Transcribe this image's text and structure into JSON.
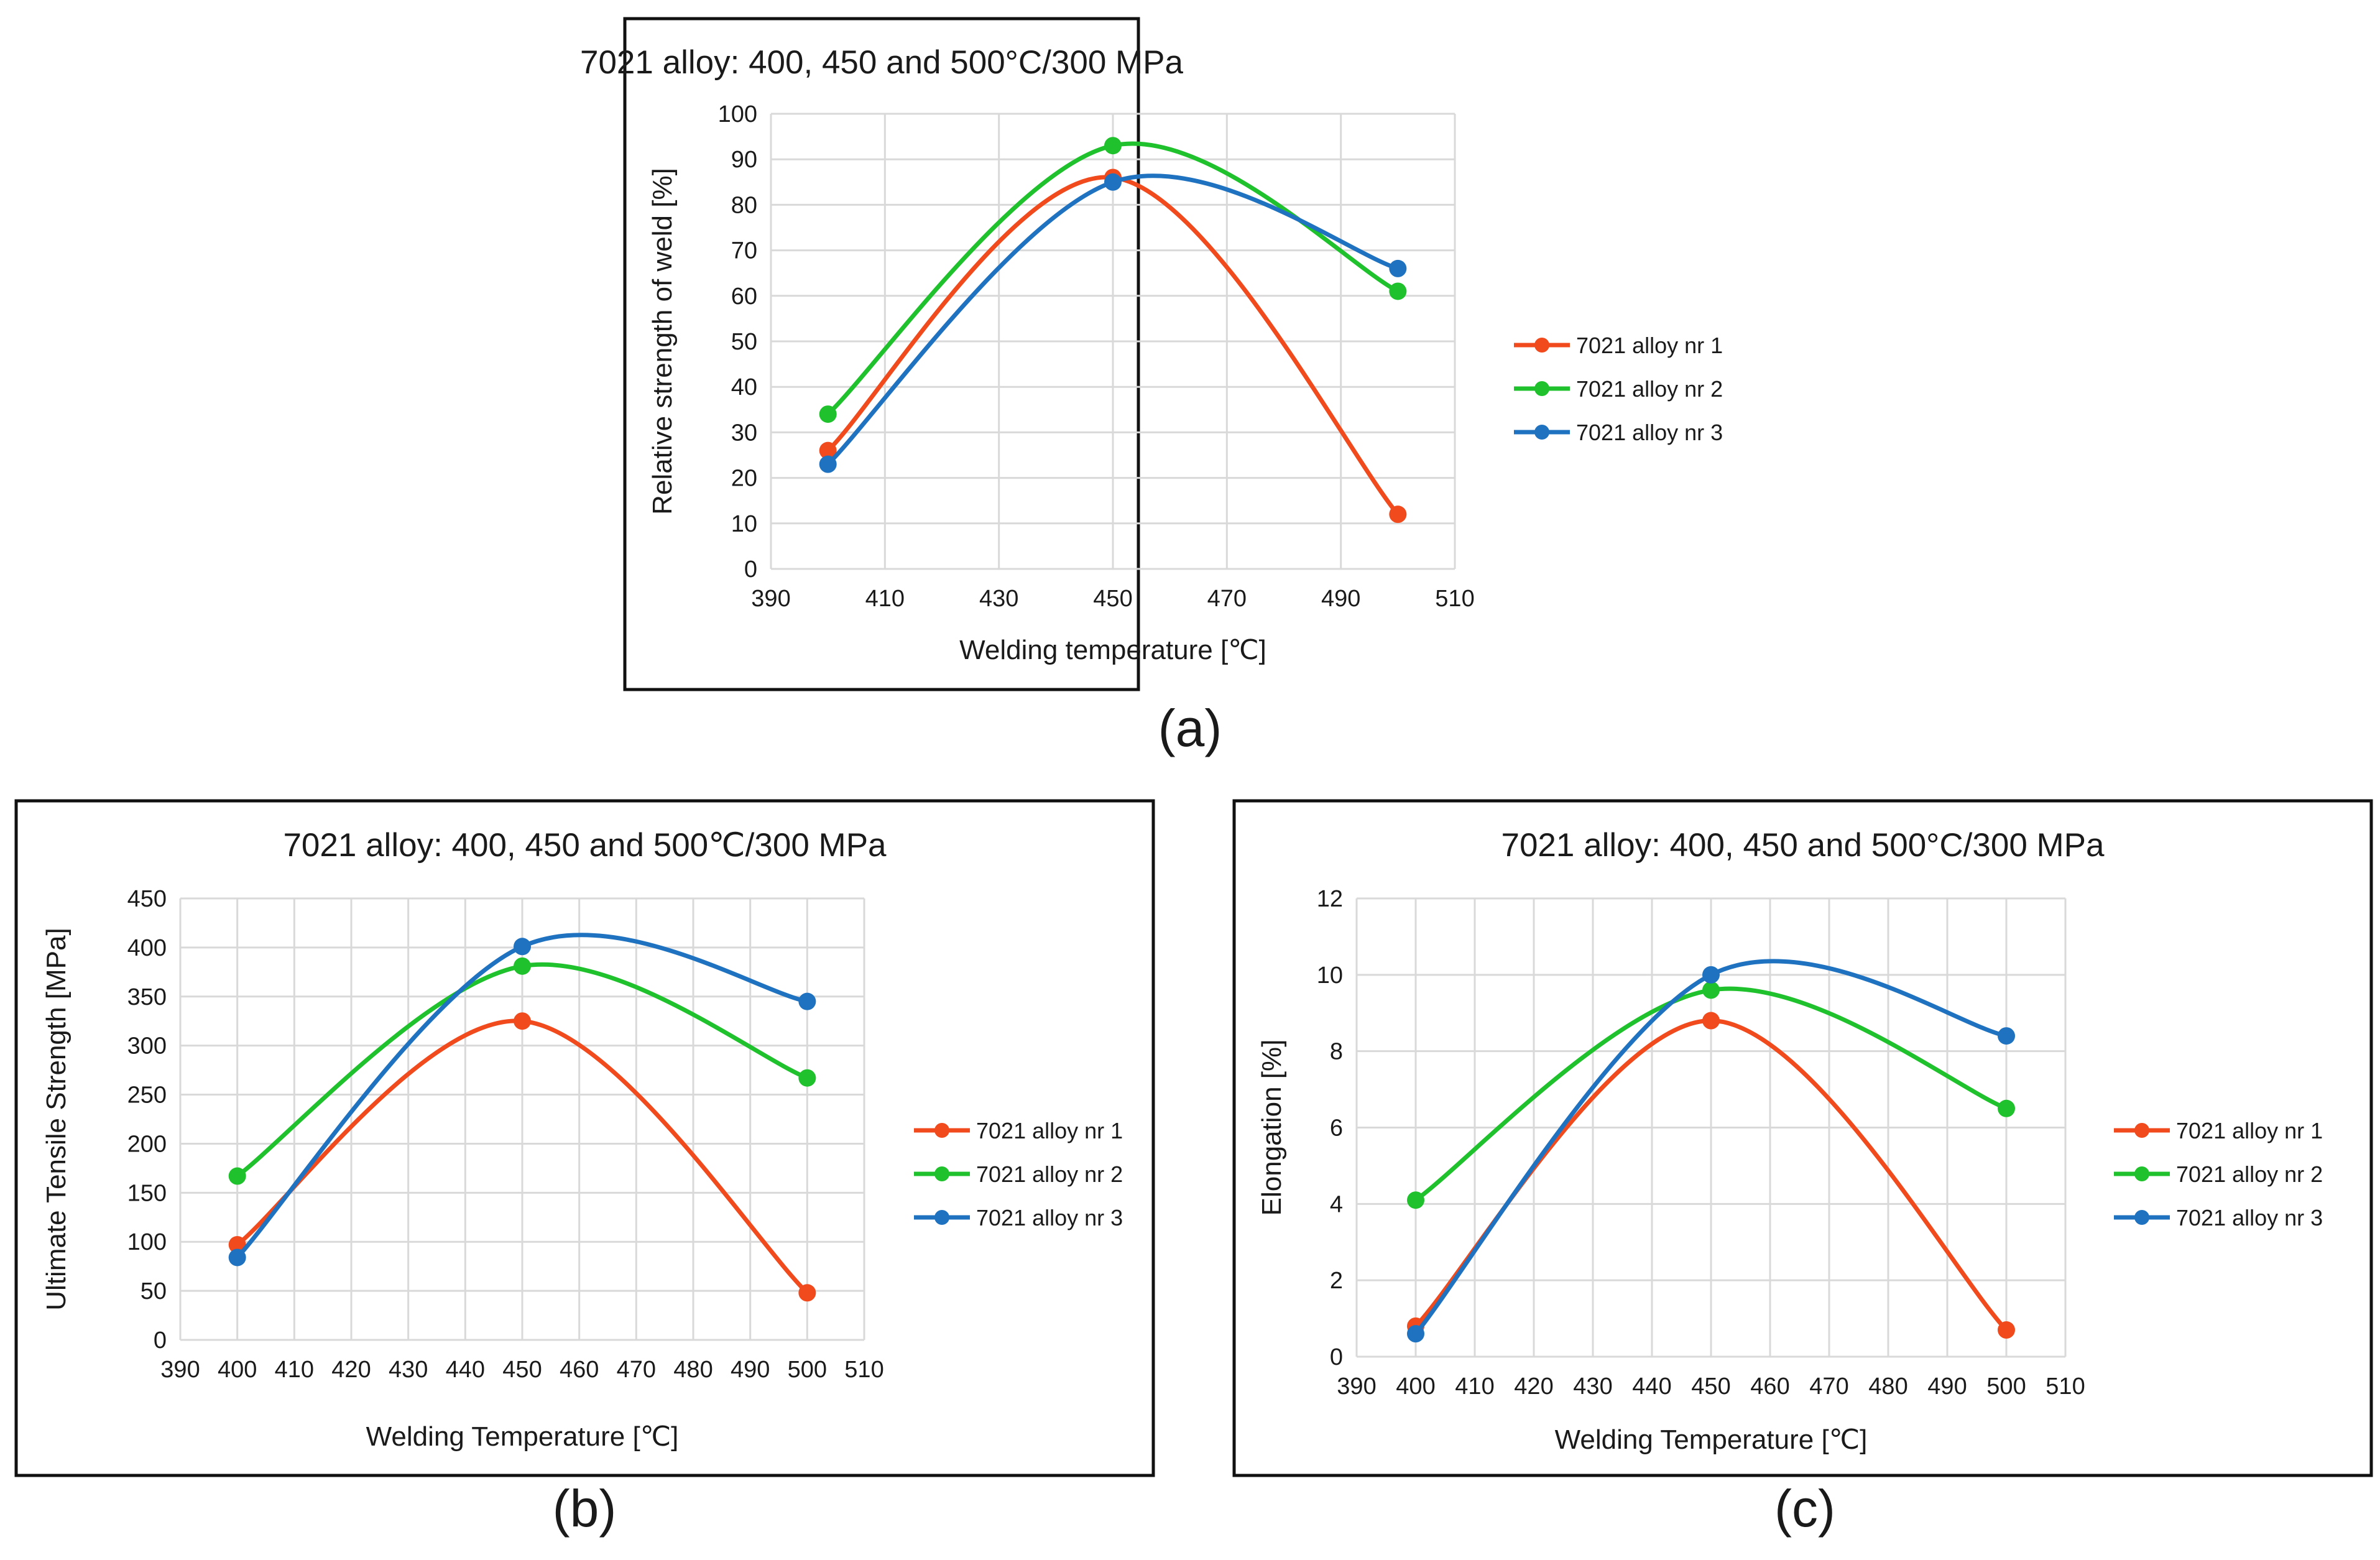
{
  "figure": {
    "captions": [
      "(a)",
      "(b)",
      "(c)"
    ]
  },
  "chart_data": [
    {
      "id": "a",
      "type": "line",
      "smooth": true,
      "title": "7021 alloy: 400, 450 and 500°C/300 MPa",
      "xlabel": "Welding temperature [℃]",
      "ylabel": "Relative strength of weld [%]",
      "xlim": [
        390,
        510
      ],
      "ylim": [
        0,
        100
      ],
      "xticks": [
        390,
        410,
        430,
        450,
        470,
        490,
        510
      ],
      "yticks": [
        0,
        10,
        20,
        30,
        40,
        50,
        60,
        70,
        80,
        90,
        100
      ],
      "x": [
        400,
        450,
        500
      ],
      "series": [
        {
          "name": "7021 alloy nr 1",
          "color": "#f04a1d",
          "values": [
            26,
            86,
            12
          ]
        },
        {
          "name": "7021 alloy nr 2",
          "color": "#1fc12c",
          "values": [
            34,
            93,
            61
          ]
        },
        {
          "name": "7021 alloy nr 3",
          "color": "#1f72c0",
          "values": [
            23,
            85,
            66
          ]
        }
      ],
      "grid": true,
      "legend": "right"
    },
    {
      "id": "b",
      "type": "line",
      "smooth": true,
      "title": "7021 alloy: 400, 450 and 500℃/300 MPa",
      "xlabel": "Welding Temperature [℃]",
      "ylabel": "Ultimate Tensile Strength [MPa]",
      "xlim": [
        390,
        510
      ],
      "ylim": [
        0,
        450
      ],
      "xticks": [
        390,
        400,
        410,
        420,
        430,
        440,
        450,
        460,
        470,
        480,
        490,
        500,
        510
      ],
      "yticks": [
        0,
        50,
        100,
        150,
        200,
        250,
        300,
        350,
        400,
        450
      ],
      "x": [
        400,
        450,
        500
      ],
      "series": [
        {
          "name": "7021 alloy nr 1",
          "color": "#f04a1d",
          "values": [
            97,
            325,
            48
          ]
        },
        {
          "name": "7021 alloy nr 2",
          "color": "#1fc12c",
          "values": [
            167,
            381,
            267
          ]
        },
        {
          "name": "7021 alloy nr 3",
          "color": "#1f72c0",
          "values": [
            84,
            401,
            345
          ]
        }
      ],
      "grid": true,
      "legend": "right"
    },
    {
      "id": "c",
      "type": "line",
      "smooth": true,
      "title": "7021 alloy: 400, 450 and 500°C/300 MPa",
      "xlabel": "Welding Temperature [℃]",
      "ylabel": "Elongation [%]",
      "xlim": [
        390,
        510
      ],
      "ylim": [
        0,
        12
      ],
      "xticks": [
        390,
        400,
        410,
        420,
        430,
        440,
        450,
        460,
        470,
        480,
        490,
        500,
        510
      ],
      "yticks": [
        0,
        2,
        4,
        6,
        8,
        10,
        12
      ],
      "x": [
        400,
        450,
        500
      ],
      "series": [
        {
          "name": "7021 alloy nr 1",
          "color": "#f04a1d",
          "values": [
            0.8,
            8.8,
            0.7
          ]
        },
        {
          "name": "7021 alloy nr 2",
          "color": "#1fc12c",
          "values": [
            4.1,
            9.6,
            6.5
          ]
        },
        {
          "name": "7021 alloy nr 3",
          "color": "#1f72c0",
          "values": [
            0.6,
            10.0,
            8.4
          ]
        }
      ],
      "grid": true,
      "legend": "right"
    }
  ]
}
